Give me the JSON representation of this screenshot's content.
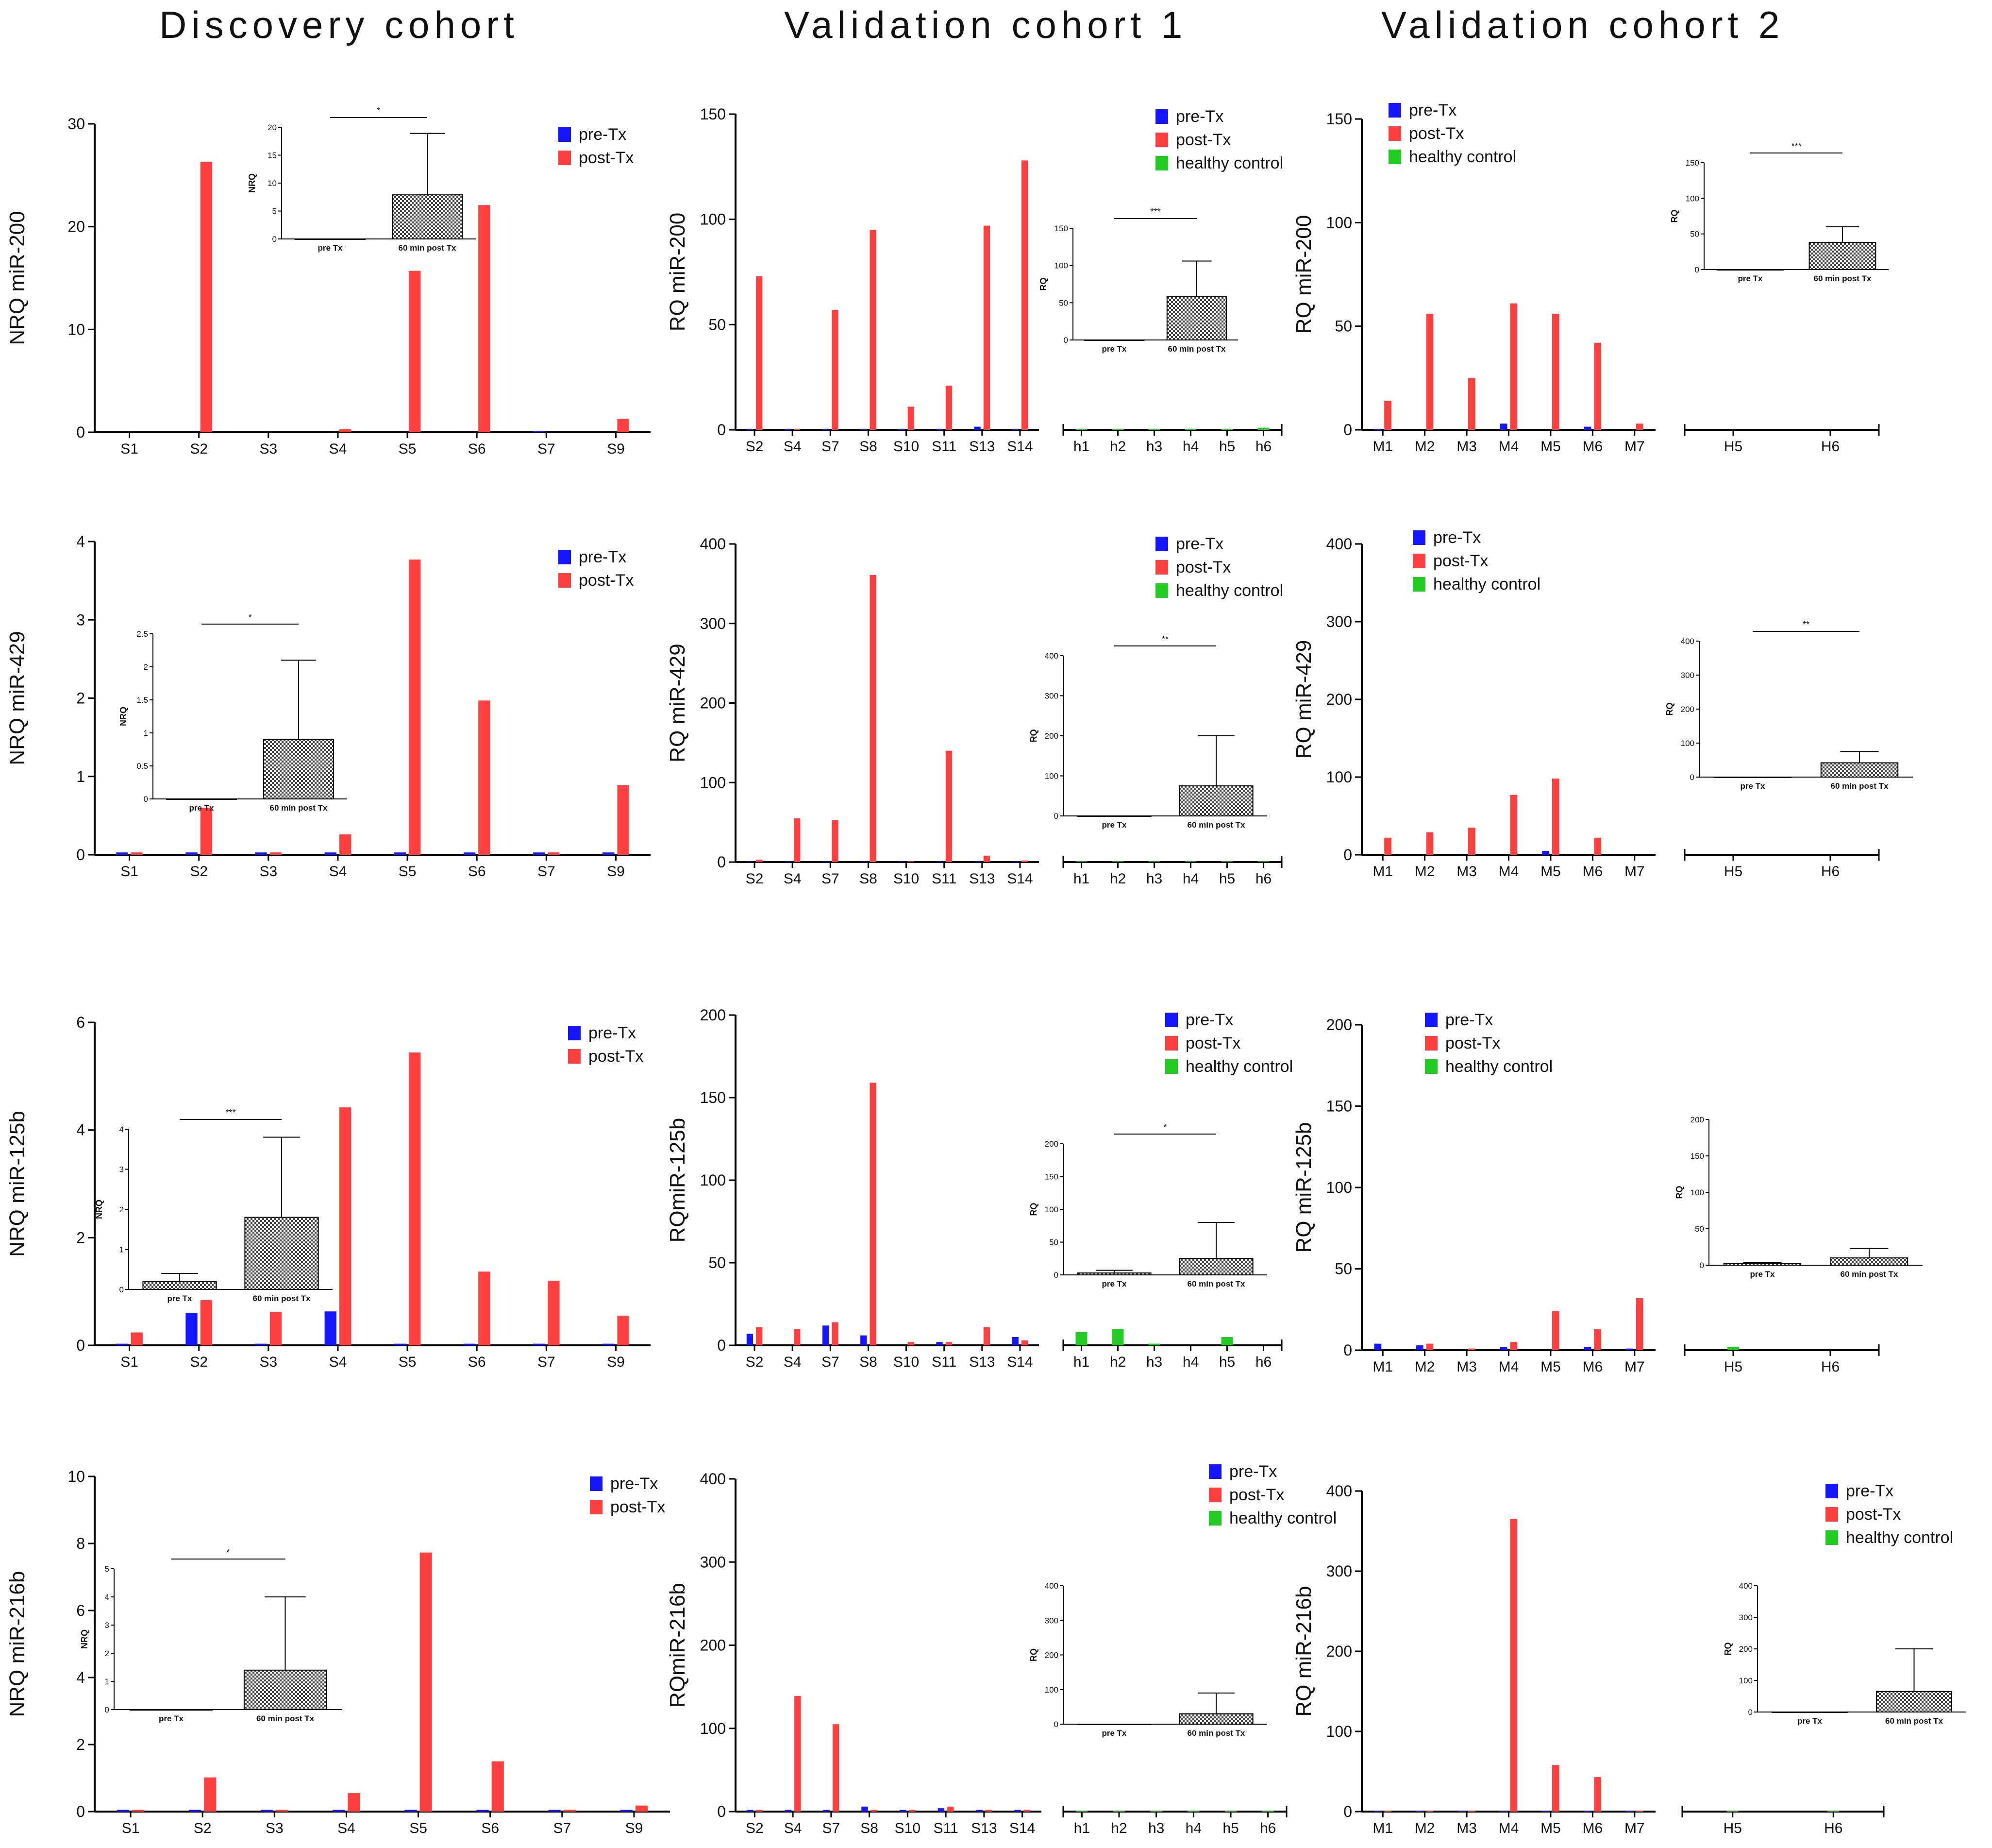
{
  "titles": [
    "Discovery cohort",
    "Validation cohort 1",
    "Validation cohort 2"
  ],
  "colors": {
    "pre": "#1515ff",
    "post": "#ff4040",
    "healthy": "#22cc22",
    "axis": "#000000"
  },
  "chart_data": [
    {
      "id": "d200",
      "type": "bar",
      "title": "",
      "ylabel": "NRQ  miR-200",
      "ylim": [
        0,
        30
      ],
      "yticks": [
        0,
        10,
        20,
        30
      ],
      "categories": [
        "S1",
        "S2",
        "S3",
        "S4",
        "S5",
        "S6",
        "S7",
        "S9"
      ],
      "series": [
        {
          "name": "pre-Tx",
          "values": [
            0,
            0,
            0,
            0,
            0,
            0,
            0.1,
            0
          ]
        },
        {
          "name": "post-Tx",
          "values": [
            0,
            26.3,
            0,
            0.3,
            15.7,
            22.1,
            0,
            1.3
          ]
        }
      ],
      "legend": [
        "pre-Tx",
        "post-Tx"
      ],
      "inset": {
        "ylabel": "NRQ",
        "ylim": [
          0,
          20
        ],
        "yticks": [
          0,
          5,
          10,
          15,
          20
        ],
        "categories": [
          "pre Tx",
          "60 min post Tx"
        ],
        "values": [
          0,
          7.9
        ],
        "errors": [
          0,
          11
        ],
        "sig": "*"
      }
    },
    {
      "id": "v1_200",
      "type": "bar",
      "title": "",
      "ylabel": "RQ miR-200",
      "ylim": [
        0,
        150
      ],
      "yticks": [
        0,
        50,
        100,
        150
      ],
      "categories": [
        "S2",
        "S4",
        "S7",
        "S8",
        "S10",
        "S11",
        "S13",
        "S14"
      ],
      "series": [
        {
          "name": "pre-Tx",
          "values": [
            0.5,
            0.5,
            0.5,
            0.5,
            0.5,
            0.5,
            1.5,
            0.5
          ]
        },
        {
          "name": "post-Tx",
          "values": [
            73,
            0.5,
            57,
            95,
            11,
            21,
            97,
            128
          ]
        }
      ],
      "controls": {
        "categories": [
          "h1",
          "h2",
          "h3",
          "h4",
          "h5",
          "h6"
        ],
        "values": [
          0.5,
          0.5,
          0.5,
          0.5,
          0.5,
          1
        ]
      },
      "legend": [
        "pre-Tx",
        "post-Tx",
        "healthy control"
      ],
      "inset": {
        "ylabel": "RQ",
        "ylim": [
          0,
          150
        ],
        "yticks": [
          0,
          50,
          100,
          150
        ],
        "categories": [
          "pre Tx",
          "60 min post Tx"
        ],
        "values": [
          0,
          58
        ],
        "errors": [
          0,
          48
        ],
        "sig": "***"
      }
    },
    {
      "id": "v2_200",
      "type": "bar",
      "title": "",
      "ylabel": "RQ miR-200",
      "ylim": [
        0,
        150
      ],
      "yticks": [
        0,
        50,
        100,
        150
      ],
      "categories": [
        "M1",
        "M2",
        "M3",
        "M4",
        "M5",
        "M6",
        "M7"
      ],
      "series": [
        {
          "name": "pre-Tx",
          "values": [
            0.5,
            0,
            0,
            3,
            0,
            1.5,
            0
          ]
        },
        {
          "name": "post-Tx",
          "values": [
            14,
            56,
            25,
            61,
            56,
            42,
            3
          ]
        }
      ],
      "controls": {
        "categories": [
          "H5",
          "H6"
        ],
        "values": [
          0,
          0
        ]
      },
      "legend": [
        "pre-Tx",
        "post-Tx",
        "healthy control"
      ],
      "inset": {
        "ylabel": "RQ",
        "ylim": [
          0,
          150
        ],
        "yticks": [
          0,
          50,
          100,
          150
        ],
        "categories": [
          "pre Tx",
          "60 min post Tx"
        ],
        "values": [
          0,
          38
        ],
        "errors": [
          0,
          22
        ],
        "sig": "***"
      }
    },
    {
      "id": "d429",
      "type": "bar",
      "title": "",
      "ylabel": "NRQ  miR-429",
      "ylim": [
        0,
        4
      ],
      "yticks": [
        0,
        1,
        2,
        3,
        4
      ],
      "categories": [
        "S1",
        "S2",
        "S3",
        "S4",
        "S5",
        "S6",
        "S7",
        "S9"
      ],
      "series": [
        {
          "name": "pre-Tx",
          "values": [
            0.03,
            0.03,
            0.03,
            0.03,
            0.03,
            0.03,
            0.03,
            0.03
          ]
        },
        {
          "name": "post-Tx",
          "values": [
            0.03,
            0.6,
            0.03,
            0.26,
            3.77,
            1.97,
            0.03,
            0.89
          ]
        }
      ],
      "legend": [
        "pre-Tx",
        "post-Tx"
      ],
      "inset": {
        "ylabel": "NRQ",
        "ylim": [
          0,
          2.5
        ],
        "yticks": [
          0,
          0.5,
          1.0,
          1.5,
          2.0,
          2.5
        ],
        "categories": [
          "pre Tx",
          "60 min post Tx"
        ],
        "values": [
          0,
          0.9
        ],
        "errors": [
          0,
          1.2
        ],
        "sig": "*"
      }
    },
    {
      "id": "v1_429",
      "type": "bar",
      "title": "",
      "ylabel": "RQ miR-429",
      "ylim": [
        0,
        400
      ],
      "yticks": [
        0,
        100,
        200,
        300,
        400
      ],
      "categories": [
        "S2",
        "S4",
        "S7",
        "S8",
        "S10",
        "S11",
        "S13",
        "S14"
      ],
      "series": [
        {
          "name": "pre-Tx",
          "values": [
            1,
            1,
            1,
            1,
            1,
            1,
            1,
            1
          ]
        },
        {
          "name": "post-Tx",
          "values": [
            3,
            55,
            53,
            361,
            1,
            140,
            8,
            2
          ]
        }
      ],
      "controls": {
        "categories": [
          "h1",
          "h2",
          "h3",
          "h4",
          "h5",
          "h6"
        ],
        "values": [
          1,
          1,
          1,
          1,
          1,
          1
        ]
      },
      "legend": [
        "pre-Tx",
        "post-Tx",
        "healthy control"
      ],
      "inset": {
        "ylabel": "RQ",
        "ylim": [
          0,
          400
        ],
        "yticks": [
          0,
          100,
          200,
          300,
          400
        ],
        "categories": [
          "pre Tx",
          "60 min post Tx"
        ],
        "values": [
          0,
          75
        ],
        "errors": [
          0,
          125
        ],
        "sig": "**"
      }
    },
    {
      "id": "v2_429",
      "type": "bar",
      "title": "",
      "ylabel": "RQ miR-429",
      "ylim": [
        0,
        400
      ],
      "yticks": [
        0,
        100,
        200,
        300,
        400
      ],
      "categories": [
        "M1",
        "M2",
        "M3",
        "M4",
        "M5",
        "M6",
        "M7"
      ],
      "series": [
        {
          "name": "pre-Tx",
          "values": [
            0,
            0,
            0,
            0,
            5,
            0,
            0
          ]
        },
        {
          "name": "post-Tx",
          "values": [
            22,
            29,
            35,
            77,
            98,
            22,
            0
          ]
        }
      ],
      "controls": {
        "categories": [
          "H5",
          "H6"
        ],
        "values": [
          0,
          0
        ]
      },
      "legend": [
        "pre-Tx",
        "post-Tx",
        "healthy control"
      ],
      "inset": {
        "ylabel": "RQ",
        "ylim": [
          0,
          400
        ],
        "yticks": [
          0,
          100,
          200,
          300,
          400
        ],
        "categories": [
          "pre Tx",
          "60 min post Tx"
        ],
        "values": [
          0,
          42
        ],
        "errors": [
          0,
          33
        ],
        "sig": "**"
      }
    },
    {
      "id": "d125",
      "type": "bar",
      "title": "",
      "ylabel": "NRQ  miR-125b",
      "ylim": [
        0,
        6
      ],
      "yticks": [
        0,
        2,
        4,
        6
      ],
      "categories": [
        "S1",
        "S2",
        "S3",
        "S4",
        "S5",
        "S6",
        "S7",
        "S9"
      ],
      "series": [
        {
          "name": "pre-Tx",
          "values": [
            0.03,
            0.6,
            0.03,
            0.63,
            0.03,
            0.03,
            0.03,
            0.03
          ]
        },
        {
          "name": "post-Tx",
          "values": [
            0.24,
            0.84,
            0.62,
            4.42,
            5.44,
            1.37,
            1.2,
            0.55
          ]
        }
      ],
      "legend": [
        "pre-Tx",
        "post-Tx"
      ],
      "inset": {
        "ylabel": "NRQ",
        "ylim": [
          0,
          4
        ],
        "yticks": [
          0,
          1,
          2,
          3,
          4
        ],
        "categories": [
          "pre Tx",
          "60 min post Tx"
        ],
        "values": [
          0.2,
          1.8
        ],
        "errors": [
          0.2,
          2
        ],
        "sig": "***"
      }
    },
    {
      "id": "v1_125",
      "type": "bar",
      "title": "",
      "ylabel": "RQmiR-125b",
      "ylim": [
        0,
        200
      ],
      "yticks": [
        0,
        50,
        100,
        150,
        200
      ],
      "categories": [
        "S2",
        "S4",
        "S7",
        "S8",
        "S10",
        "S11",
        "S13",
        "S14"
      ],
      "series": [
        {
          "name": "pre-Tx",
          "values": [
            7,
            0,
            12,
            6,
            0,
            2,
            0,
            5
          ]
        },
        {
          "name": "post-Tx",
          "values": [
            11,
            10,
            14,
            159,
            2,
            2,
            11,
            3
          ]
        }
      ],
      "controls": {
        "categories": [
          "h1",
          "h2",
          "h3",
          "h4",
          "h5",
          "h6"
        ],
        "values": [
          8,
          10,
          1,
          0,
          5,
          0
        ]
      },
      "legend": [
        "pre-Tx",
        "post-Tx",
        "healthy control"
      ],
      "inset": {
        "ylabel": "RQ",
        "ylim": [
          0,
          200
        ],
        "yticks": [
          0,
          50,
          100,
          150,
          200
        ],
        "categories": [
          "pre Tx",
          "60 min post Tx"
        ],
        "values": [
          3,
          25
        ],
        "errors": [
          4,
          55
        ],
        "sig": "*"
      }
    },
    {
      "id": "v2_125",
      "type": "bar",
      "title": "",
      "ylabel": "RQ  miR-125b",
      "ylim": [
        0,
        200
      ],
      "yticks": [
        0,
        50,
        100,
        150,
        200
      ],
      "categories": [
        "M1",
        "M2",
        "M3",
        "M4",
        "M5",
        "M6",
        "M7"
      ],
      "series": [
        {
          "name": "pre-Tx",
          "values": [
            4,
            3,
            0,
            2,
            0,
            2,
            1
          ]
        },
        {
          "name": "post-Tx",
          "values": [
            0,
            4,
            1,
            5,
            24,
            13,
            32
          ]
        }
      ],
      "controls": {
        "categories": [
          "H5",
          "H6"
        ],
        "values": [
          2,
          0
        ]
      },
      "legend": [
        "pre-Tx",
        "post-Tx",
        "healthy control"
      ],
      "inset": {
        "ylabel": "RQ",
        "ylim": [
          0,
          200
        ],
        "yticks": [
          0,
          50,
          100,
          150,
          200
        ],
        "categories": [
          "pre Tx",
          "60 min post Tx"
        ],
        "values": [
          2,
          10
        ],
        "errors": [
          2,
          13
        ],
        "sig": ""
      }
    },
    {
      "id": "d216",
      "type": "bar",
      "title": "",
      "ylabel": "NRQ  miR-216b",
      "ylim": [
        0,
        10
      ],
      "yticks": [
        0,
        2,
        4,
        6,
        8,
        10
      ],
      "categories": [
        "S1",
        "S2",
        "S3",
        "S4",
        "S5",
        "S6",
        "S7",
        "S9"
      ],
      "series": [
        {
          "name": "pre-Tx",
          "values": [
            0.05,
            0.05,
            0.05,
            0.05,
            0.05,
            0.05,
            0.05,
            0.05
          ]
        },
        {
          "name": "post-Tx",
          "values": [
            0.05,
            1.02,
            0.05,
            0.55,
            7.73,
            1.5,
            0.05,
            0.18
          ]
        }
      ],
      "legend": [
        "pre-Tx",
        "post-Tx"
      ],
      "inset": {
        "ylabel": "NRQ",
        "ylim": [
          0,
          5
        ],
        "yticks": [
          0,
          1,
          2,
          3,
          4,
          5
        ],
        "categories": [
          "pre Tx",
          "60 min post Tx"
        ],
        "values": [
          0,
          1.4
        ],
        "errors": [
          0,
          2.6
        ],
        "sig": "*"
      }
    },
    {
      "id": "v1_216",
      "type": "bar",
      "title": "",
      "ylabel": "RQmiR-216b",
      "ylim": [
        0,
        400
      ],
      "yticks": [
        0,
        100,
        200,
        300,
        400
      ],
      "categories": [
        "S2",
        "S4",
        "S7",
        "S8",
        "S10",
        "S11",
        "S13",
        "S14"
      ],
      "series": [
        {
          "name": "pre-Tx",
          "values": [
            2,
            2,
            2,
            6,
            2,
            4,
            2,
            2
          ]
        },
        {
          "name": "post-Tx",
          "values": [
            2,
            139,
            105,
            2,
            2,
            6,
            2,
            2
          ]
        }
      ],
      "controls": {
        "categories": [
          "h1",
          "h2",
          "h3",
          "h4",
          "h5",
          "h6"
        ],
        "values": [
          1,
          1,
          1,
          1,
          1,
          1
        ]
      },
      "legend": [
        "pre-Tx",
        "post-Tx",
        "healthy control"
      ],
      "inset": {
        "ylabel": "RQ",
        "ylim": [
          0,
          400
        ],
        "yticks": [
          0,
          100,
          200,
          300,
          400
        ],
        "categories": [
          "pre Tx",
          "60 min post Tx"
        ],
        "values": [
          0,
          30
        ],
        "errors": [
          0,
          60
        ],
        "sig": ""
      }
    },
    {
      "id": "v2_216",
      "type": "bar",
      "title": "",
      "ylabel": "RQ miR-216b",
      "ylim": [
        0,
        400
      ],
      "yticks": [
        0,
        100,
        200,
        300,
        400
      ],
      "categories": [
        "M1",
        "M2",
        "M3",
        "M4",
        "M5",
        "M6",
        "M7"
      ],
      "series": [
        {
          "name": "pre-Tx",
          "values": [
            1,
            1,
            1,
            1,
            1,
            1,
            1
          ]
        },
        {
          "name": "post-Tx",
          "values": [
            1,
            1,
            1,
            365,
            58,
            43,
            1
          ]
        }
      ],
      "controls": {
        "categories": [
          "H5",
          "H6"
        ],
        "values": [
          1,
          1
        ]
      },
      "legend": [
        "pre-Tx",
        "post-Tx",
        "healthy control"
      ],
      "inset": {
        "ylabel": "RQ",
        "ylim": [
          0,
          400
        ],
        "yticks": [
          0,
          100,
          200,
          300,
          400
        ],
        "categories": [
          "pre Tx",
          "60 min post Tx"
        ],
        "values": [
          0,
          65
        ],
        "errors": [
          0,
          135
        ],
        "sig": ""
      }
    }
  ]
}
